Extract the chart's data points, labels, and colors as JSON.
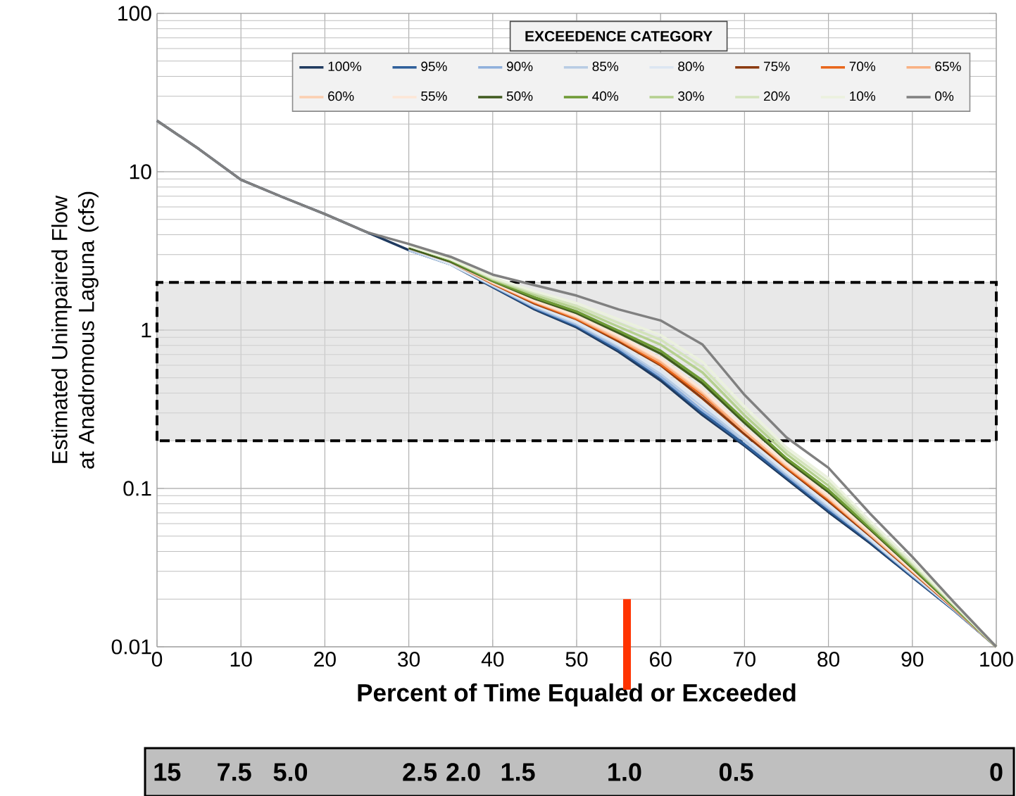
{
  "chart_data": {
    "type": "line",
    "xlabel": "Percent of Time Equaled or Exceeded",
    "ylabel": "Estimated Unimpaired Flow at Anadromous Laguna (cfs)",
    "legend_title": "EXCEEDENCE CATEGORY",
    "x": [
      0,
      5,
      10,
      15,
      20,
      25,
      30,
      35,
      40,
      45,
      50,
      55,
      60,
      65,
      70,
      75,
      80,
      85,
      90,
      95,
      100
    ],
    "series": [
      {
        "name": "100%",
        "color": "#1f3a5f",
        "values": [
          21,
          13.9,
          8.9,
          6.9,
          5.4,
          4.15,
          3.2,
          2.6,
          1.87,
          1.35,
          1.04,
          0.73,
          0.48,
          0.29,
          0.186,
          0.115,
          0.071,
          0.045,
          0.0275,
          0.0169,
          0.01
        ]
      },
      {
        "name": "95%",
        "color": "#2e5f9a",
        "values": [
          null,
          null,
          null,
          null,
          null,
          null,
          3.2,
          2.6,
          1.88,
          1.37,
          1.06,
          0.75,
          0.5,
          0.3,
          0.19,
          0.118,
          0.073,
          0.046,
          0.0278,
          0.017,
          0.01
        ]
      },
      {
        "name": "90%",
        "color": "#8fb0dc",
        "values": [
          null,
          null,
          null,
          null,
          null,
          null,
          3.2,
          2.6,
          1.9,
          1.39,
          1.08,
          0.77,
          0.51,
          0.31,
          0.2,
          0.121,
          0.075,
          0.047,
          0.0282,
          0.0171,
          0.01
        ]
      },
      {
        "name": "85%",
        "color": "#b8cce4",
        "values": [
          null,
          null,
          null,
          null,
          null,
          null,
          3.2,
          2.6,
          1.91,
          1.41,
          1.1,
          0.79,
          0.53,
          0.33,
          0.2,
          0.124,
          0.077,
          0.047,
          0.0285,
          0.0172,
          0.01
        ]
      },
      {
        "name": "80%",
        "color": "#dce6f2",
        "values": [
          null,
          null,
          null,
          null,
          null,
          null,
          3.3,
          2.6,
          1.93,
          1.43,
          1.12,
          0.81,
          0.55,
          0.34,
          0.21,
          0.127,
          0.079,
          0.048,
          0.0288,
          0.0172,
          0.01
        ]
      },
      {
        "name": "75%",
        "color": "#8b3a0f",
        "values": [
          null,
          null,
          null,
          null,
          null,
          null,
          3.3,
          2.7,
          1.96,
          1.47,
          1.17,
          0.85,
          0.6,
          0.37,
          0.22,
          0.134,
          0.083,
          0.05,
          0.0296,
          0.0174,
          0.01
        ]
      },
      {
        "name": "70%",
        "color": "#e8661a",
        "values": [
          null,
          null,
          null,
          null,
          null,
          null,
          3.3,
          2.7,
          1.97,
          1.49,
          1.18,
          0.87,
          0.61,
          0.39,
          0.23,
          0.136,
          0.085,
          0.051,
          0.0299,
          0.0175,
          0.01
        ]
      },
      {
        "name": "65%",
        "color": "#f9b183",
        "values": [
          null,
          null,
          null,
          null,
          null,
          null,
          3.3,
          2.7,
          1.98,
          1.51,
          1.2,
          0.88,
          0.63,
          0.4,
          0.23,
          0.139,
          0.087,
          0.051,
          0.0301,
          0.0176,
          0.01
        ]
      },
      {
        "name": "60%",
        "color": "#fbcfb0",
        "values": [
          null,
          null,
          null,
          null,
          null,
          null,
          3.3,
          2.7,
          2.0,
          1.52,
          1.22,
          0.9,
          0.65,
          0.41,
          0.24,
          0.141,
          0.088,
          0.052,
          0.0304,
          0.0176,
          0.01
        ]
      },
      {
        "name": "55%",
        "color": "#fde6d6",
        "values": [
          null,
          null,
          null,
          null,
          null,
          null,
          3.3,
          2.7,
          2.01,
          1.54,
          1.23,
          0.92,
          0.66,
          0.42,
          0.24,
          0.144,
          0.09,
          0.053,
          0.0307,
          0.0177,
          0.01
        ]
      },
      {
        "name": "50%",
        "color": "#3f5a1e",
        "values": [
          null,
          null,
          null,
          null,
          null,
          null,
          3.3,
          2.7,
          2.04,
          1.58,
          1.28,
          0.96,
          0.71,
          0.46,
          0.26,
          0.151,
          0.095,
          0.055,
          0.0314,
          0.0178,
          0.01
        ]
      },
      {
        "name": "40%",
        "color": "#6e9a35",
        "values": [
          null,
          null,
          null,
          null,
          null,
          null,
          3.4,
          2.75,
          2.05,
          1.61,
          1.31,
          0.99,
          0.74,
          0.48,
          0.27,
          0.155,
          0.098,
          0.056,
          0.0319,
          0.0179,
          0.01
        ]
      },
      {
        "name": "30%",
        "color": "#b5d08f",
        "values": [
          null,
          null,
          null,
          null,
          null,
          null,
          3.4,
          2.8,
          2.09,
          1.67,
          1.37,
          1.05,
          0.81,
          0.54,
          0.29,
          0.165,
          0.104,
          0.058,
          0.0329,
          0.0182,
          0.01
        ]
      },
      {
        "name": "20%",
        "color": "#d3e3bb",
        "values": [
          null,
          null,
          null,
          null,
          null,
          null,
          3.4,
          2.8,
          2.12,
          1.72,
          1.42,
          1.11,
          0.87,
          0.58,
          0.31,
          0.173,
          0.11,
          0.06,
          0.0337,
          0.0183,
          0.01
        ]
      },
      {
        "name": "10%",
        "color": "#ebf1de",
        "values": [
          null,
          null,
          null,
          null,
          null,
          null,
          3.4,
          2.8,
          2.15,
          1.76,
          1.48,
          1.17,
          0.93,
          0.63,
          0.33,
          0.182,
          0.116,
          0.062,
          0.0345,
          0.0185,
          0.01
        ]
      },
      {
        "name": "0%",
        "color": "#808080",
        "values": [
          21,
          13.9,
          8.9,
          6.9,
          5.4,
          4.15,
          3.5,
          2.9,
          2.24,
          1.92,
          1.65,
          1.35,
          1.15,
          0.81,
          0.39,
          0.21,
          0.135,
          0.069,
          0.037,
          0.019,
          0.01
        ]
      },
      {
        "type": "line",
        "color": "#ff3300",
        "x": [
          56,
          56
        ],
        "values": [
          0.01,
          0.02
        ]
      }
    ],
    "xlim": [
      0,
      100
    ],
    "xticks": [
      0,
      10,
      20,
      30,
      40,
      50,
      60,
      70,
      80,
      90,
      100
    ],
    "ylim": [
      0.01,
      100
    ],
    "yticks": [
      0.01,
      0.1,
      1,
      10,
      100
    ],
    "log": "y",
    "annotations": [
      "15",
      "7.5",
      "5.0",
      "2.5",
      "2.0",
      "1.5",
      "1.0",
      "0.5",
      "0"
    ],
    "bands": [
      {
        "axis": "y",
        "from": 0.2,
        "to": 2,
        "color": "#d9d9d9"
      }
    ],
    "grid": true,
    "legend": "top",
    "line_style": "solid",
    "marker": "none"
  }
}
